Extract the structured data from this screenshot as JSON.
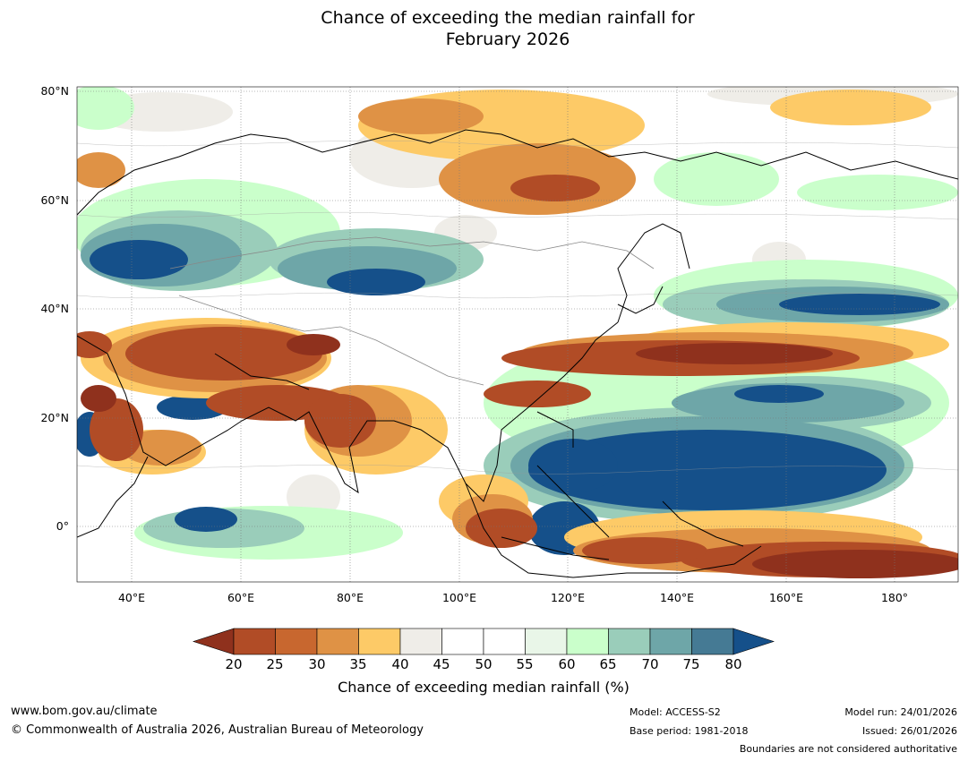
{
  "title": {
    "line1": "Chance of exceeding the median rainfall for",
    "line2": "February 2026"
  },
  "axes": {
    "lat_labels": [
      "80°N",
      "60°N",
      "40°N",
      "20°N",
      "0°"
    ],
    "lon_labels": [
      "40°E",
      "60°E",
      "80°E",
      "100°E",
      "120°E",
      "140°E",
      "160°E",
      "180°"
    ]
  },
  "colorbar": {
    "ticks": [
      "20",
      "25",
      "30",
      "35",
      "40",
      "45",
      "50",
      "55",
      "60",
      "65",
      "70",
      "75",
      "80"
    ],
    "colors": [
      "#8f311d",
      "#b14c26",
      "#c8672f",
      "#df9245",
      "#fdca67",
      "#efede8",
      "#ffffff",
      "#ffffff",
      "#e9f6e8",
      "#caffcb",
      "#9acdba",
      "#6ea6a8",
      "#457a94",
      "#15508a"
    ],
    "label": "Chance of exceeding median rainfall (%)"
  },
  "footer": {
    "website": "www.bom.gov.au/climate",
    "copyright": "© Commonwealth of Australia 2026, Australian Bureau of Meteorology",
    "model": "Model: ACCESS-S2",
    "base_period": "Base period: 1981-2018",
    "model_run": "Model run: 24/01/2026",
    "issued": "Issued: 26/01/2026",
    "disclaimer": "Boundaries are not considered authoritative"
  }
}
